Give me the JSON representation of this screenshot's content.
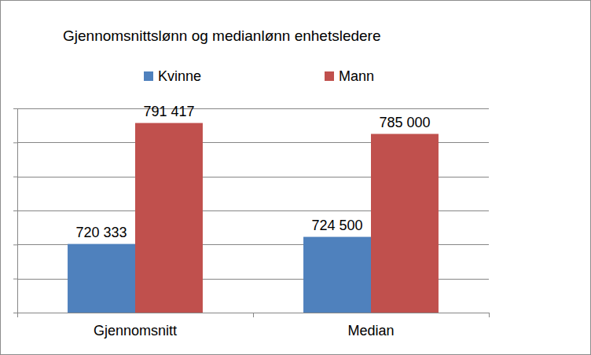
{
  "chart_data": {
    "type": "bar",
    "title": "Gjennomsnittslønn og medianlønn enhetsledere",
    "categories": [
      "Gjennomsnitt",
      "Median"
    ],
    "series": [
      {
        "name": "Kvinne",
        "color": "#4F81BD",
        "values": [
          720333,
          724500
        ],
        "value_labels": [
          "720 333",
          "724 500"
        ]
      },
      {
        "name": "Mann",
        "color": "#C0504D",
        "values": [
          791417,
          785000
        ],
        "value_labels": [
          "791 417",
          "785 000"
        ]
      }
    ],
    "ylim": [
      680000,
      800000
    ],
    "yticks": [
      680000,
      700000,
      720000,
      740000,
      760000,
      780000,
      800000
    ],
    "grid": true,
    "legend": "top",
    "data_labels": true,
    "tick_labels": "x"
  }
}
